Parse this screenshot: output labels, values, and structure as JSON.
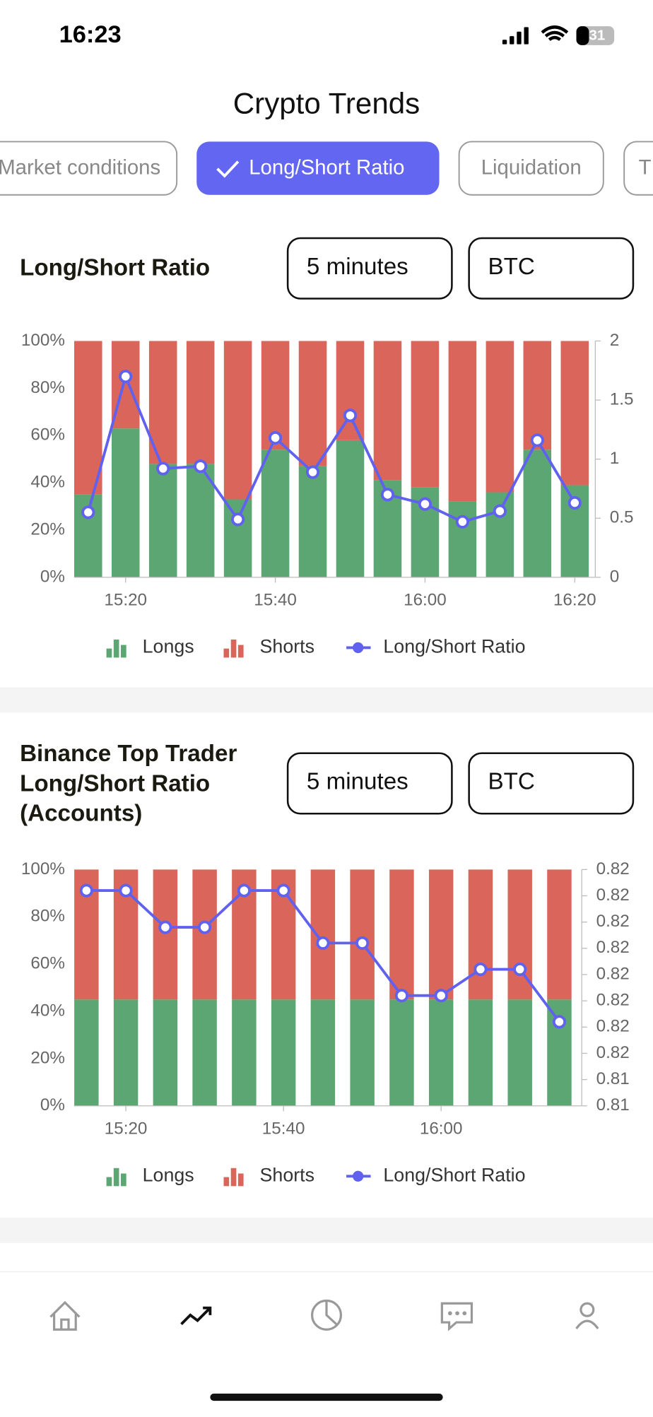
{
  "status_bar": {
    "time": "16:23",
    "battery": "31"
  },
  "header": {
    "title": "Crypto Trends"
  },
  "tabs": [
    {
      "label": "Market conditions",
      "active": false
    },
    {
      "label": "Long/Short Ratio",
      "active": true
    },
    {
      "label": "Liquidation",
      "active": false
    },
    {
      "label": "T",
      "active": false
    }
  ],
  "sections": [
    {
      "interval": "5 minutes",
      "coin": "BTC"
    },
    {
      "interval": "5 minutes",
      "coin": "BTC"
    }
  ],
  "chart_data": [
    {
      "type": "bar",
      "stacked": true,
      "title": "Long/Short Ratio",
      "categories": [
        null,
        "15:20",
        null,
        null,
        null,
        "15:40",
        null,
        null,
        null,
        "16:00",
        null,
        null,
        null,
        "16:20"
      ],
      "series": [
        {
          "name": "Longs",
          "color": "#5ba672",
          "values": [
            35,
            63,
            48,
            48,
            33,
            54,
            47,
            58,
            41,
            38,
            32,
            36,
            54,
            39
          ]
        },
        {
          "name": "Shorts",
          "color": "#d9655b",
          "values": [
            65,
            37,
            52,
            52,
            67,
            46,
            53,
            42,
            59,
            62,
            68,
            64,
            46,
            61
          ]
        },
        {
          "name": "Long/Short Ratio",
          "type": "line",
          "axis": "y2",
          "color": "#6161f0",
          "values": [
            0.55,
            1.7,
            0.92,
            0.94,
            0.49,
            1.18,
            0.89,
            1.37,
            0.7,
            0.62,
            0.47,
            0.56,
            1.16,
            0.63
          ]
        }
      ],
      "ylim": [
        0,
        100
      ],
      "yticks": [
        {
          "value": 0,
          "label": "0%"
        },
        {
          "value": 20,
          "label": "20%"
        },
        {
          "value": 40,
          "label": "40%"
        },
        {
          "value": 60,
          "label": "60%"
        },
        {
          "value": 80,
          "label": "80%"
        },
        {
          "value": 100,
          "label": "100%"
        }
      ],
      "y2lim": [
        0,
        2
      ],
      "y2ticks": [
        0,
        0.5,
        1,
        1.5,
        2
      ]
    },
    {
      "type": "bar",
      "stacked": true,
      "title": "Binance Top Trader Long/Short Ratio (Accounts)",
      "categories": [
        null,
        "15:20",
        null,
        null,
        null,
        "15:40",
        null,
        null,
        null,
        "16:00",
        null,
        null,
        null
      ],
      "series": [
        {
          "name": "Longs",
          "color": "#5ba672",
          "values": [
            45,
            45,
            45,
            45,
            45,
            45,
            45,
            45,
            45,
            45,
            45,
            45,
            45
          ]
        },
        {
          "name": "Shorts",
          "color": "#d9655b",
          "values": [
            55,
            55,
            55,
            55,
            55,
            55,
            55,
            55,
            55,
            55,
            55,
            55,
            55
          ]
        },
        {
          "name": "Long/Short Ratio",
          "type": "line",
          "axis": "y2",
          "color": "#6161f0",
          "values": [
            0.8212,
            0.8212,
            0.8198,
            0.8198,
            0.8212,
            0.8212,
            0.8192,
            0.8192,
            0.8172,
            0.8172,
            0.8182,
            0.8182,
            0.8162
          ]
        }
      ],
      "ylim": [
        0,
        100
      ],
      "yticks": [
        {
          "value": 0,
          "label": "0%"
        },
        {
          "value": 20,
          "label": "20%"
        },
        {
          "value": 40,
          "label": "40%"
        },
        {
          "value": 60,
          "label": "60%"
        },
        {
          "value": 80,
          "label": "80%"
        },
        {
          "value": 100,
          "label": "100%"
        }
      ],
      "y2lim": [
        0.813,
        0.822
      ],
      "y2ticks": [
        {
          "value": 0.813,
          "label": "0.81"
        },
        {
          "value": 0.814,
          "label": "0.81"
        },
        {
          "value": 0.815,
          "label": "0.82"
        },
        {
          "value": 0.816,
          "label": "0.82"
        },
        {
          "value": 0.817,
          "label": "0.82"
        },
        {
          "value": 0.818,
          "label": "0.82"
        },
        {
          "value": 0.819,
          "label": "0.82"
        },
        {
          "value": 0.82,
          "label": "0.82"
        },
        {
          "value": 0.821,
          "label": "0.82"
        },
        {
          "value": 0.822,
          "label": "0.82"
        }
      ]
    }
  ]
}
